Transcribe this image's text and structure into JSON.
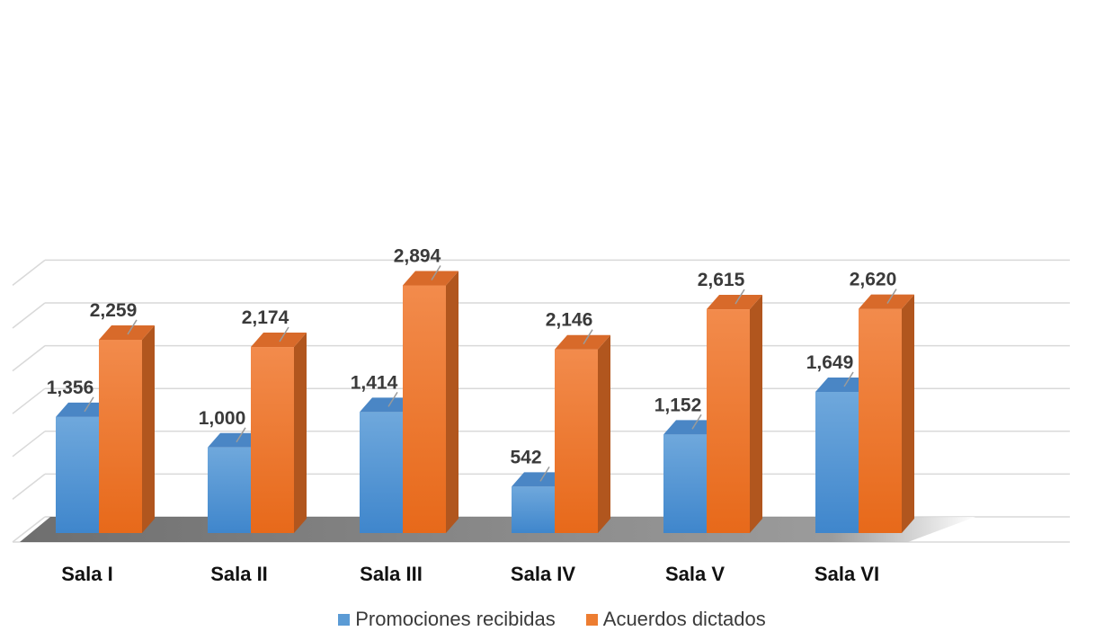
{
  "chart_data": {
    "type": "bar",
    "categories": [
      "Sala I",
      "Sala II",
      "Sala III",
      "Sala IV",
      "Sala V",
      "Sala VI"
    ],
    "series": [
      {
        "name": "Promociones recibidas",
        "values": [
          1356,
          1000,
          1414,
          542,
          1152,
          1649
        ],
        "labels": [
          "1,356",
          "1,000",
          "1,414",
          "542",
          "1,152",
          "1,649"
        ],
        "color": "#5B9BD5"
      },
      {
        "name": "Acuerdos dictados",
        "values": [
          2259,
          2174,
          2894,
          2146,
          2615,
          2620
        ],
        "labels": [
          "2,259",
          "2,174",
          "2,894",
          "2,146",
          "2,615",
          "2,620"
        ],
        "color": "#ED7D31"
      }
    ],
    "ylim": [
      0,
      3000
    ],
    "grid": true,
    "legend": "bottom",
    "style": "3d-clustered-column"
  }
}
